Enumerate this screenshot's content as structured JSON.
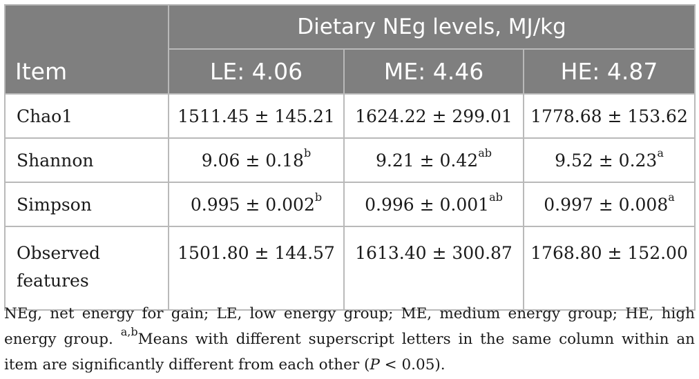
{
  "table": {
    "item_header": "Item",
    "group_header": "Dietary NEg levels, MJ/kg",
    "columns": [
      "LE: 4.06",
      "ME: 4.46",
      "HE: 4.87"
    ],
    "rows": [
      {
        "item": "Chao1",
        "cells": [
          {
            "value": "1511.45 ± 145.21",
            "sup": ""
          },
          {
            "value": "1624.22 ± 299.01",
            "sup": ""
          },
          {
            "value": "1778.68 ± 153.62",
            "sup": ""
          }
        ]
      },
      {
        "item": "Shannon",
        "cells": [
          {
            "value": "9.06 ± 0.18",
            "sup": "b"
          },
          {
            "value": "9.21 ± 0.42",
            "sup": "ab"
          },
          {
            "value": "9.52 ± 0.23",
            "sup": "a"
          }
        ]
      },
      {
        "item": "Simpson",
        "cells": [
          {
            "value": "0.995 ± 0.002",
            "sup": "b"
          },
          {
            "value": "0.996 ± 0.001",
            "sup": "ab"
          },
          {
            "value": "0.997 ± 0.008",
            "sup": "a"
          }
        ]
      },
      {
        "item_line1": "Observed",
        "item_line2": "features",
        "cells": [
          {
            "value": "1501.80 ± 144.57",
            "sup": ""
          },
          {
            "value": "1613.40 ± 300.87",
            "sup": ""
          },
          {
            "value": "1768.80 ± 152.00",
            "sup": ""
          }
        ]
      }
    ]
  },
  "footnote": {
    "text1": "NEg, net energy for gain; LE, low energy group; ME, medium energy group; HE, high energy group. ",
    "sup": "a,b",
    "text2": "Means with different superscript letters in the same column within an item are significantly different from each other (",
    "p": "P",
    "text3": " < 0.05)."
  }
}
